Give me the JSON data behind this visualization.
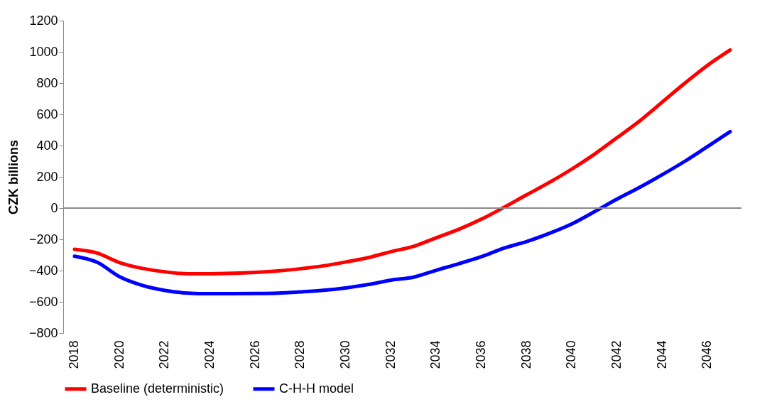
{
  "chart_data": {
    "type": "line",
    "ylabel": "CZK billions",
    "categories": [
      "2018",
      null,
      "2020",
      null,
      "2022",
      null,
      "2024",
      null,
      "2026",
      null,
      "2028",
      null,
      "2030",
      null,
      "2032",
      null,
      "2034",
      null,
      "2036",
      null,
      "2038",
      null,
      "2040",
      null,
      "2042",
      null,
      "2044",
      null,
      "2046",
      null
    ],
    "series": [
      {
        "name": "Baseline (deterministic)",
        "color": "#ff0000",
        "values": [
          -264,
          -288,
          -349,
          -386,
          -408,
          -420,
          -420,
          -417,
          -411,
          -402,
          -388,
          -370,
          -345,
          -317,
          -279,
          -245,
          -190,
          -136,
          -71,
          5,
          85,
          164,
          250,
          345,
          451,
          558,
          679,
          800,
          914,
          1012
        ]
      },
      {
        "name": "C-H-H model",
        "color": "#0000ff",
        "values": [
          -308,
          -347,
          -440,
          -495,
          -527,
          -544,
          -548,
          -548,
          -547,
          -544,
          -536,
          -526,
          -511,
          -489,
          -461,
          -442,
          -398,
          -356,
          -311,
          -256,
          -214,
          -162,
          -101,
          -23,
          58,
          133,
          214,
          300,
          394,
          489
        ]
      }
    ],
    "ylim": [
      -800,
      1200
    ],
    "yticks": [
      -800,
      -600,
      -400,
      -200,
      0,
      200,
      400,
      600,
      800,
      1000,
      1200
    ],
    "ref_lines": [
      {
        "axis": "y",
        "value": 0,
        "color": "#888888"
      }
    ],
    "grid": false,
    "legend": "bottom",
    "marker": "none",
    "line_style": "solid"
  }
}
